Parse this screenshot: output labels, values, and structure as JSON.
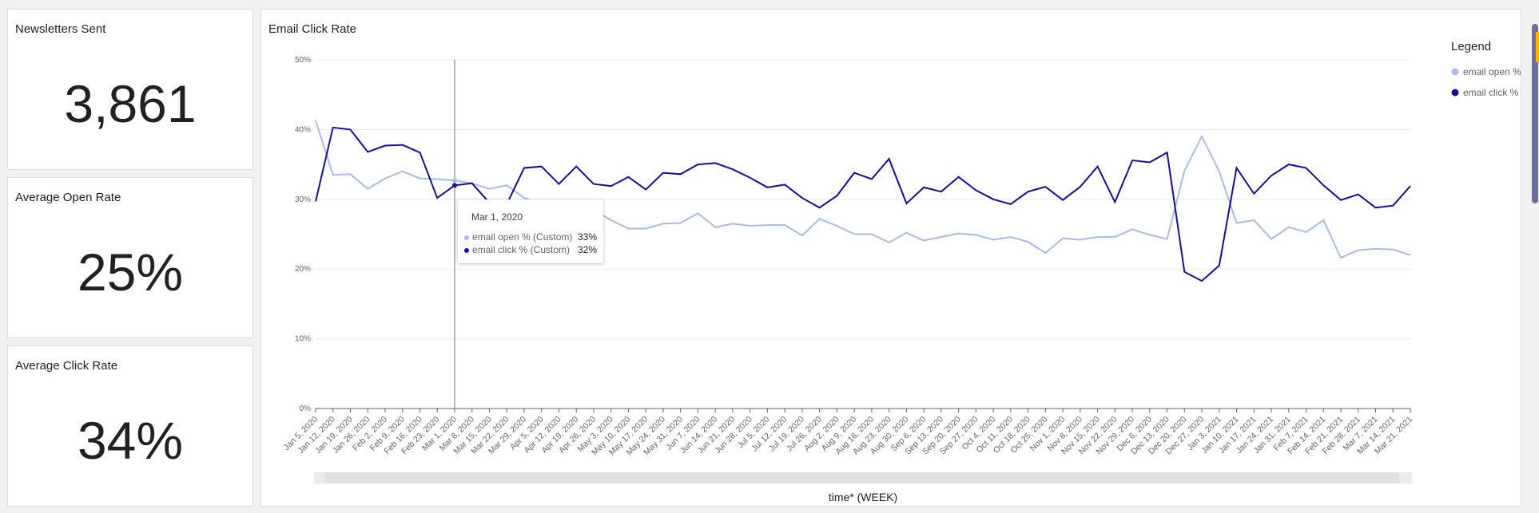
{
  "kpis": [
    {
      "title": "Newsletters Sent",
      "value": "3,861"
    },
    {
      "title": "Average Open Rate",
      "value": "25%"
    },
    {
      "title": "Average Click Rate",
      "value": "34%"
    }
  ],
  "chart_title": "Email Click Rate",
  "tooltip": {
    "date": "Mar 1, 2020",
    "rows": [
      {
        "name": "email open % (Custom)",
        "value": "33%",
        "color": "#a8bde3"
      },
      {
        "name": "email click % (Custom)",
        "value": "32%",
        "color": "#1a0b9a"
      }
    ]
  },
  "colors": {
    "open": "#a8bde3",
    "click": "#1a0b9a",
    "scrollbar": "#6a6e9e",
    "accent": "#f4b400"
  },
  "chart_data": {
    "type": "line",
    "title": "Email Click Rate",
    "xlabel": "time* (WEEK)",
    "ylabel": "",
    "ylim": [
      0,
      50
    ],
    "yticks": [
      "0%",
      "10%",
      "20%",
      "30%",
      "40%",
      "50%"
    ],
    "grid": true,
    "legend": {
      "title": "Legend",
      "position": "right"
    },
    "x": [
      "Jan 5, 2020",
      "Jan 12, 2020",
      "Jan 19, 2020",
      "Jan 26, 2020",
      "Feb 2, 2020",
      "Feb 9, 2020",
      "Feb 16, 2020",
      "Feb 23, 2020",
      "Mar 1, 2020",
      "Mar 8, 2020",
      "Mar 15, 2020",
      "Mar 22, 2020",
      "Mar 29, 2020",
      "Apr 5, 2020",
      "Apr 12, 2020",
      "Apr 19, 2020",
      "Apr 26, 2020",
      "May 3, 2020",
      "May 10, 2020",
      "May 17, 2020",
      "May 24, 2020",
      "May 31, 2020",
      "Jun 7, 2020",
      "Jun 14, 2020",
      "Jun 21, 2020",
      "Jun 28, 2020",
      "Jul 5, 2020",
      "Jul 12, 2020",
      "Jul 19, 2020",
      "Jul 26, 2020",
      "Aug 2, 2020",
      "Aug 9, 2020",
      "Aug 16, 2020",
      "Aug 23, 2020",
      "Aug 30, 2020",
      "Sep 6, 2020",
      "Sep 13, 2020",
      "Sep 20, 2020",
      "Sep 27, 2020",
      "Oct 4, 2020",
      "Oct 11, 2020",
      "Oct 18, 2020",
      "Oct 25, 2020",
      "Nov 1, 2020",
      "Nov 8, 2020",
      "Nov 15, 2020",
      "Nov 22, 2020",
      "Nov 29, 2020",
      "Dec 6, 2020",
      "Dec 13, 2020",
      "Dec 20, 2020",
      "Dec 27, 2020",
      "Jan 3, 2021",
      "Jan 10, 2021",
      "Jan 17, 2021",
      "Jan 24, 2021",
      "Jan 31, 2021",
      "Feb 7, 2021",
      "Feb 14, 2021",
      "Feb 21, 2021",
      "Feb 28, 2021",
      "Mar 7, 2021",
      "Mar 14, 2021",
      "Mar 21, 2021"
    ],
    "series": [
      {
        "name": "email open %",
        "color": "#a8bde3",
        "values": [
          41.3,
          33.5,
          33.6,
          31.5,
          33.0,
          34.0,
          33.0,
          32.9,
          32.7,
          32.3,
          31.5,
          32.0,
          30.2,
          29.4,
          29.0,
          28.8,
          28.5,
          27.0,
          25.8,
          25.8,
          26.5,
          26.6,
          28.0,
          26.0,
          26.5,
          26.2,
          26.3,
          26.3,
          24.8,
          27.2,
          26.2,
          25.0,
          25.0,
          23.8,
          25.2,
          24.1,
          24.6,
          25.1,
          24.9,
          24.2,
          24.6,
          23.9,
          22.3,
          24.4,
          24.2,
          24.6,
          24.6,
          25.7,
          24.9,
          24.3,
          34.1,
          39.0,
          34.0,
          26.6,
          27.0,
          24.3,
          26.0,
          25.3,
          27.0,
          21.6,
          22.7,
          22.9,
          22.8,
          22.0
        ]
      },
      {
        "name": "email click %",
        "color": "#1a0b9a",
        "values": [
          29.7,
          40.3,
          40.0,
          36.8,
          37.7,
          37.8,
          36.7,
          30.2,
          32.0,
          32.3,
          29.5,
          29.3,
          34.5,
          34.7,
          32.2,
          34.7,
          32.2,
          31.9,
          33.2,
          31.4,
          33.8,
          33.6,
          35.0,
          35.2,
          34.3,
          33.1,
          31.7,
          32.1,
          30.2,
          28.8,
          30.5,
          33.8,
          32.9,
          35.8,
          29.4,
          31.7,
          31.1,
          33.2,
          31.3,
          30.0,
          29.3,
          31.1,
          31.8,
          29.9,
          31.8,
          34.7,
          29.6,
          35.6,
          35.3,
          36.7,
          19.6,
          18.3,
          20.5,
          34.5,
          30.8,
          33.4,
          35.0,
          34.5,
          32.0,
          29.9,
          30.7,
          28.8,
          29.1,
          31.9
        ]
      }
    ]
  }
}
